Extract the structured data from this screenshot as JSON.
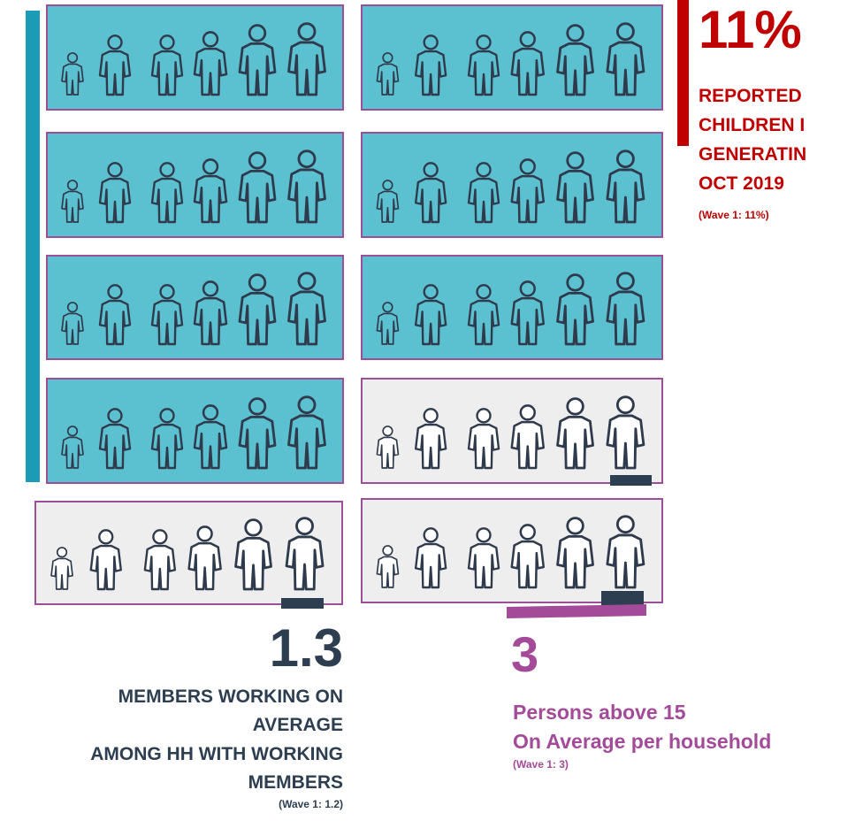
{
  "headline": {
    "value": "11%",
    "lines": [
      "REPORTED",
      "CHILDREN I",
      "GENERATIN",
      "OCT 2019"
    ],
    "note": "(Wave 1: 11%)"
  },
  "working": {
    "value": "1.3",
    "lines": [
      "MEMBERS WORKING ON",
      "AVERAGE",
      "AMONG HH WITH WORKING",
      "MEMBERS"
    ],
    "note": "(Wave 1: 1.2)"
  },
  "persons": {
    "value": "3",
    "lines": [
      "Persons above 15",
      "On Average per household"
    ],
    "note": "(Wave 1: 3)"
  }
}
